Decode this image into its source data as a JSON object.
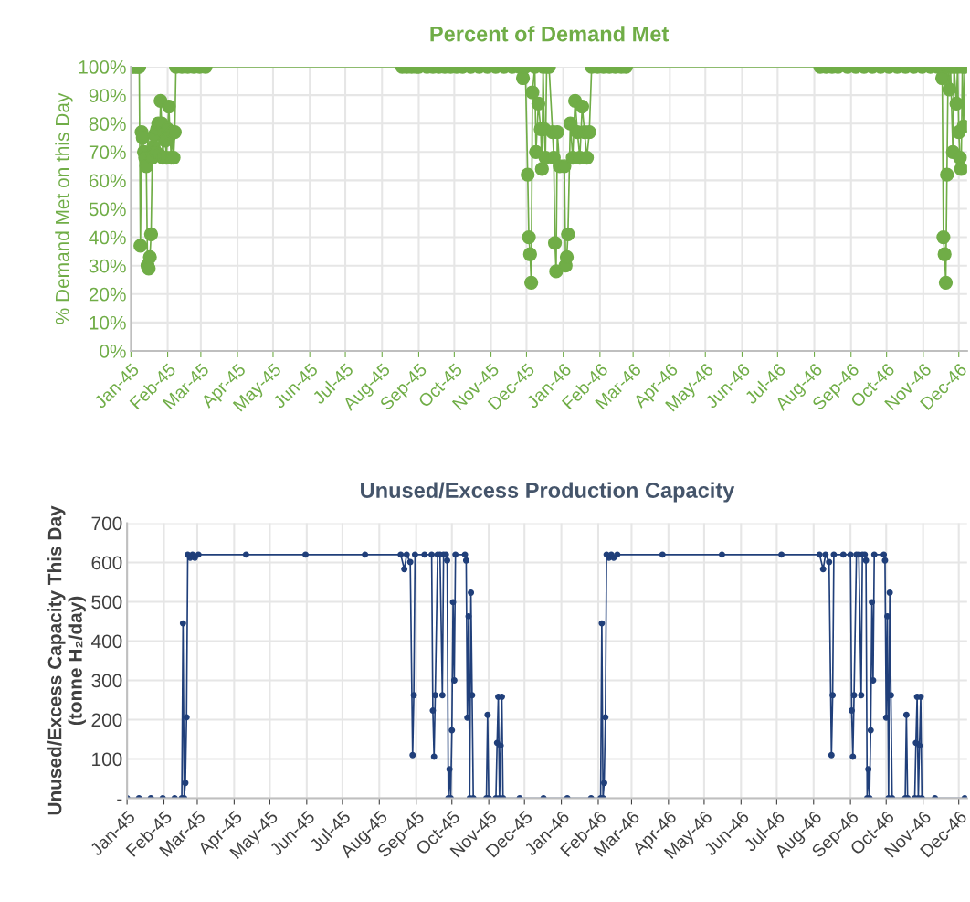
{
  "chart_data": [
    {
      "type": "line",
      "title": "Percent of Demand Met",
      "ylabel": "% Demand Met on this Day",
      "marker": "circle",
      "grid": true,
      "xlim": [
        "2045-01-01",
        "2046-12-08"
      ],
      "xticks": [
        {
          "value": "2045-01-01",
          "label": "Jan-45"
        },
        {
          "value": "2045-02-01",
          "label": "Feb-45"
        },
        {
          "value": "2045-03-01",
          "label": "Mar-45"
        },
        {
          "value": "2045-04-01",
          "label": "Apr-45"
        },
        {
          "value": "2045-05-01",
          "label": "May-45"
        },
        {
          "value": "2045-06-01",
          "label": "Jun-45"
        },
        {
          "value": "2045-07-01",
          "label": "Jul-45"
        },
        {
          "value": "2045-08-01",
          "label": "Aug-45"
        },
        {
          "value": "2045-09-01",
          "label": "Sep-45"
        },
        {
          "value": "2045-10-01",
          "label": "Oct-45"
        },
        {
          "value": "2045-11-01",
          "label": "Nov-45"
        },
        {
          "value": "2045-12-01",
          "label": "Dec-45"
        },
        {
          "value": "2046-01-01",
          "label": "Jan-46"
        },
        {
          "value": "2046-02-01",
          "label": "Feb-46"
        },
        {
          "value": "2046-03-01",
          "label": "Mar-46"
        },
        {
          "value": "2046-04-01",
          "label": "Apr-46"
        },
        {
          "value": "2046-05-01",
          "label": "May-46"
        },
        {
          "value": "2046-06-01",
          "label": "Jun-46"
        },
        {
          "value": "2046-07-01",
          "label": "Jul-46"
        },
        {
          "value": "2046-08-01",
          "label": "Aug-46"
        },
        {
          "value": "2046-09-01",
          "label": "Sep-46"
        },
        {
          "value": "2046-10-01",
          "label": "Oct-46"
        },
        {
          "value": "2046-11-01",
          "label": "Nov-46"
        },
        {
          "value": "2046-12-01",
          "label": "Dec-46"
        }
      ],
      "ylim": [
        0,
        100
      ],
      "yticks": [
        {
          "value": 0,
          "label": "0%"
        },
        {
          "value": 10,
          "label": "10%"
        },
        {
          "value": 20,
          "label": "20%"
        },
        {
          "value": 30,
          "label": "30%"
        },
        {
          "value": 40,
          "label": "40%"
        },
        {
          "value": 50,
          "label": "50%"
        },
        {
          "value": 60,
          "label": "60%"
        },
        {
          "value": 70,
          "label": "70%"
        },
        {
          "value": 80,
          "label": "80%"
        },
        {
          "value": 90,
          "label": "90%"
        },
        {
          "value": 100,
          "label": "100%"
        }
      ],
      "series": [
        {
          "color": "#70ad47",
          "x": [
            "2045-01-01",
            "2045-01-03",
            "2045-01-05",
            "2045-01-07",
            "2045-01-08",
            "2045-01-09",
            "2045-01-10",
            "2045-01-11",
            "2045-01-12",
            "2045-01-13",
            "2045-01-14",
            "2045-01-15",
            "2045-01-16",
            "2045-01-17",
            "2045-01-18",
            "2045-01-19",
            "2045-01-20",
            "2045-01-21",
            "2045-01-22",
            "2045-01-23",
            "2045-01-24",
            "2045-01-25",
            "2045-01-26",
            "2045-01-27",
            "2045-01-28",
            "2045-01-29",
            "2045-01-30",
            "2045-01-31",
            "2045-02-01",
            "2045-02-02",
            "2045-02-03",
            "2045-02-04",
            "2045-02-05",
            "2045-02-06",
            "2045-02-07",
            "2045-02-08",
            "2045-02-13",
            "2045-02-18",
            "2045-02-23",
            "2045-02-28",
            "2045-03-05",
            "2045-08-18",
            "2045-08-22",
            "2045-08-26",
            "2045-08-30",
            "2045-09-01",
            "2045-09-08",
            "2045-09-13",
            "2045-09-18",
            "2045-09-23",
            "2045-09-28",
            "2045-10-03",
            "2045-10-08",
            "2045-10-15",
            "2045-10-22",
            "2045-10-29",
            "2045-11-05",
            "2045-11-12",
            "2045-11-19",
            "2045-11-25",
            "2045-11-28",
            "2045-11-30",
            "2045-12-02",
            "2045-12-03",
            "2045-12-04",
            "2045-12-05",
            "2045-12-06",
            "2045-12-08",
            "2045-12-09",
            "2045-12-11",
            "2045-12-13",
            "2045-12-14",
            "2045-12-15",
            "2045-12-16",
            "2045-12-17",
            "2045-12-18",
            "2045-12-20",
            "2045-12-23",
            "2045-12-24",
            "2045-12-25",
            "2045-12-26",
            "2045-12-27",
            "2045-12-29",
            "2046-01-02",
            "2046-01-03",
            "2046-01-04",
            "2046-01-05",
            "2046-01-07",
            "2046-01-09",
            "2046-01-11",
            "2046-01-13",
            "2046-01-15",
            "2046-01-17",
            "2046-01-19",
            "2046-01-21",
            "2046-01-23",
            "2046-01-25",
            "2046-01-30",
            "2046-02-04",
            "2046-02-09",
            "2046-02-14",
            "2046-02-19",
            "2046-02-23",
            "2046-08-06",
            "2046-08-11",
            "2046-08-16",
            "2046-08-21",
            "2046-08-29",
            "2046-09-05",
            "2046-09-12",
            "2046-09-19",
            "2046-09-26",
            "2046-10-03",
            "2046-10-10",
            "2046-10-17",
            "2046-10-24",
            "2046-10-31",
            "2046-11-07",
            "2046-11-13",
            "2046-11-16",
            "2046-11-17",
            "2046-11-18",
            "2046-11-19",
            "2046-11-20",
            "2046-11-21",
            "2046-11-22",
            "2046-11-23",
            "2046-11-24",
            "2046-11-26",
            "2046-11-27",
            "2046-11-29",
            "2046-11-30",
            "2046-12-01",
            "2046-12-02",
            "2046-12-03",
            "2046-12-04",
            "2046-12-05",
            "2046-12-06"
          ],
          "values": [
            100,
            100,
            100,
            100,
            100,
            37,
            77,
            75,
            70,
            68,
            65,
            30,
            29,
            33,
            41,
            68,
            72,
            76,
            70,
            78,
            80,
            69,
            88,
            80,
            68,
            77,
            74,
            68,
            78,
            86,
            76,
            68,
            77,
            68,
            77,
            100,
            100,
            100,
            100,
            100,
            100,
            100,
            100,
            100,
            100,
            100,
            100,
            100,
            100,
            100,
            100,
            100,
            100,
            100,
            100,
            100,
            100,
            100,
            100,
            100,
            96,
            100,
            62,
            40,
            34,
            24,
            91,
            100,
            70,
            87,
            78,
            64,
            100,
            78,
            68,
            100,
            100,
            77,
            68,
            38,
            28,
            77,
            65,
            65,
            30,
            33,
            41,
            80,
            68,
            88,
            77,
            68,
            86,
            77,
            68,
            77,
            100,
            100,
            100,
            100,
            100,
            100,
            100,
            100,
            100,
            100,
            100,
            100,
            100,
            100,
            100,
            100,
            100,
            100,
            100,
            100,
            100,
            100,
            100,
            100,
            96,
            40,
            34,
            24,
            62,
            100,
            92,
            100,
            70,
            100,
            87,
            100,
            77,
            68,
            64,
            100,
            79,
            100
          ]
        }
      ]
    },
    {
      "type": "line",
      "title": "Unused/Excess Production Capacity",
      "ylabel": "Unused/Excess Capacity This Day\n(tonne H₂/day)",
      "marker": "circle",
      "grid": true,
      "xlim": [
        "2045-01-01",
        "2046-12-08"
      ],
      "xticks": [
        {
          "value": "2045-01-01",
          "label": "Jan-45"
        },
        {
          "value": "2045-02-01",
          "label": "Feb-45"
        },
        {
          "value": "2045-03-01",
          "label": "Mar-45"
        },
        {
          "value": "2045-04-01",
          "label": "Apr-45"
        },
        {
          "value": "2045-05-01",
          "label": "May-45"
        },
        {
          "value": "2045-06-01",
          "label": "Jun-45"
        },
        {
          "value": "2045-07-01",
          "label": "Jul-45"
        },
        {
          "value": "2045-08-01",
          "label": "Aug-45"
        },
        {
          "value": "2045-09-01",
          "label": "Sep-45"
        },
        {
          "value": "2045-10-01",
          "label": "Oct-45"
        },
        {
          "value": "2045-11-01",
          "label": "Nov-45"
        },
        {
          "value": "2045-12-01",
          "label": "Dec-45"
        },
        {
          "value": "2046-01-01",
          "label": "Jan-46"
        },
        {
          "value": "2046-02-01",
          "label": "Feb-46"
        },
        {
          "value": "2046-03-01",
          "label": "Mar-46"
        },
        {
          "value": "2046-04-01",
          "label": "Apr-46"
        },
        {
          "value": "2046-05-01",
          "label": "May-46"
        },
        {
          "value": "2046-06-01",
          "label": "Jun-46"
        },
        {
          "value": "2046-07-01",
          "label": "Jul-46"
        },
        {
          "value": "2046-08-01",
          "label": "Aug-46"
        },
        {
          "value": "2046-09-01",
          "label": "Sep-46"
        },
        {
          "value": "2046-10-01",
          "label": "Oct-46"
        },
        {
          "value": "2046-11-01",
          "label": "Nov-46"
        },
        {
          "value": "2046-12-01",
          "label": "Dec-46"
        }
      ],
      "ylim": [
        0,
        700
      ],
      "yticks": [
        {
          "value": 0,
          "label": "-"
        },
        100,
        200,
        300,
        400,
        500,
        600,
        700
      ],
      "series": [
        {
          "color": "#203f7a",
          "x": [
            "2045-01-01",
            "2045-01-11",
            "2045-01-21",
            "2045-01-31",
            "2045-02-10",
            "2045-02-16",
            "2045-02-17",
            "2045-02-18",
            "2045-02-19",
            "2045-02-20",
            "2045-02-21",
            "2045-02-23",
            "2045-02-25",
            "2045-02-27",
            "2045-03-02",
            "2045-04-11",
            "2045-05-31",
            "2045-07-20",
            "2045-08-19",
            "2045-08-22",
            "2045-08-24",
            "2045-08-27",
            "2045-08-29",
            "2045-08-30",
            "2045-08-31",
            "2045-09-08",
            "2045-09-14",
            "2045-09-15",
            "2045-09-16",
            "2045-09-17",
            "2045-09-19",
            "2045-09-21",
            "2045-09-23",
            "2045-09-24",
            "2045-09-26",
            "2045-09-27",
            "2045-09-28",
            "2045-09-29",
            "2045-09-30",
            "2045-10-01",
            "2045-10-02",
            "2045-10-03",
            "2045-10-04",
            "2045-10-12",
            "2045-10-13",
            "2045-10-14",
            "2045-10-15",
            "2045-10-16",
            "2045-10-17",
            "2045-10-18",
            "2045-10-19",
            "2045-10-30",
            "2045-10-31",
            "2045-11-01",
            "2045-11-07",
            "2045-11-08",
            "2045-11-09",
            "2045-11-10",
            "2045-11-11",
            "2045-11-12",
            "2045-11-13",
            "2045-11-27",
            "2045-12-17",
            "2046-01-06",
            "2046-01-26",
            "2046-02-03",
            "2046-02-04",
            "2046-02-05",
            "2046-02-06",
            "2046-02-07",
            "2046-02-08",
            "2046-02-10",
            "2046-02-12",
            "2046-02-14",
            "2046-02-17",
            "2046-03-27",
            "2046-05-16",
            "2046-07-05",
            "2046-08-06",
            "2046-08-09",
            "2046-08-11",
            "2046-08-14",
            "2046-08-16",
            "2046-08-17",
            "2046-08-18",
            "2046-08-26",
            "2046-09-01",
            "2046-09-02",
            "2046-09-03",
            "2046-09-04",
            "2046-09-06",
            "2046-09-08",
            "2046-09-10",
            "2046-09-11",
            "2046-09-13",
            "2046-09-14",
            "2046-09-15",
            "2046-09-16",
            "2046-09-17",
            "2046-09-18",
            "2046-09-19",
            "2046-09-20",
            "2046-09-21",
            "2046-09-29",
            "2046-09-30",
            "2046-10-01",
            "2046-10-02",
            "2046-10-03",
            "2046-10-04",
            "2046-10-05",
            "2046-10-06",
            "2046-10-17",
            "2046-10-18",
            "2046-10-19",
            "2046-10-25",
            "2046-10-26",
            "2046-10-27",
            "2046-10-28",
            "2046-10-29",
            "2046-10-30",
            "2046-10-31",
            "2046-11-11",
            "2046-12-06"
          ],
          "values": [
            0,
            0,
            0,
            0,
            0,
            0,
            445,
            0,
            39,
            206,
            620,
            612,
            620,
            612,
            620,
            620,
            620,
            620,
            620,
            583,
            620,
            601,
            110,
            262,
            620,
            620,
            620,
            223,
            106,
            262,
            620,
            620,
            262,
            620,
            620,
            605,
            0,
            74,
            0,
            173,
            499,
            300,
            620,
            620,
            605,
            205,
            463,
            0,
            523,
            262,
            0,
            0,
            212,
            0,
            0,
            141,
            258,
            0,
            134,
            258,
            0,
            0,
            0,
            0,
            0,
            0,
            445,
            0,
            39,
            206,
            620,
            612,
            620,
            612,
            620,
            620,
            620,
            620,
            620,
            583,
            620,
            601,
            110,
            262,
            620,
            620,
            620,
            223,
            106,
            262,
            620,
            620,
            262,
            620,
            620,
            605,
            0,
            74,
            0,
            173,
            499,
            300,
            620,
            620,
            605,
            205,
            463,
            0,
            523,
            262,
            0,
            0,
            212,
            0,
            0,
            141,
            258,
            0,
            134,
            258,
            0,
            0,
            0
          ]
        }
      ]
    }
  ]
}
